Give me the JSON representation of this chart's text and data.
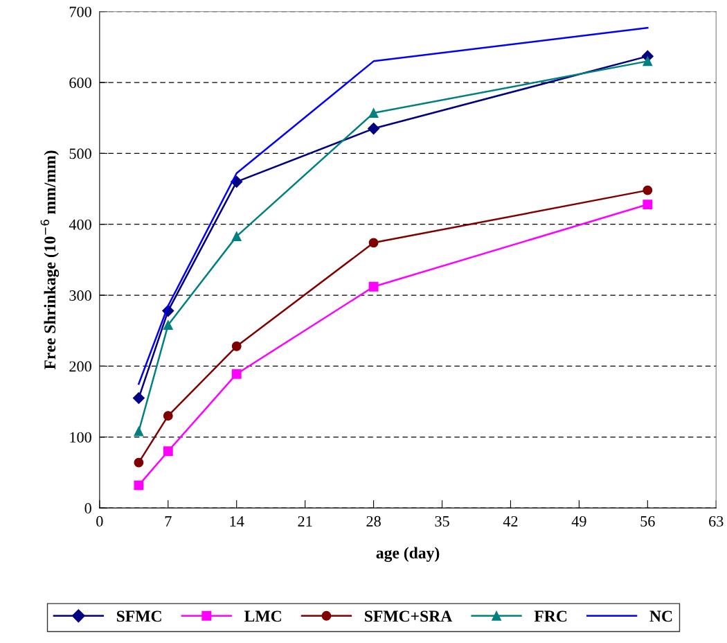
{
  "chart_data": {
    "type": "line",
    "xlabel": "age (day)",
    "ylabel": "Free Shrinkage (10$^{−6}$ mm/mm)",
    "x": [
      4,
      7,
      14,
      28,
      56
    ],
    "series": [
      {
        "name": "SFMC",
        "color": "#000080",
        "marker": "diamond",
        "values": [
          155,
          278,
          460,
          535,
          637
        ]
      },
      {
        "name": "LMC",
        "color": "#ff00ff",
        "marker": "square",
        "values": [
          32,
          80,
          189,
          312,
          428
        ]
      },
      {
        "name": "SFMC+SRA",
        "color": "#800000",
        "marker": "circle",
        "values": [
          64,
          130,
          228,
          374,
          448
        ]
      },
      {
        "name": "FRC",
        "color": "#008080",
        "marker": "triangle",
        "values": [
          108,
          258,
          383,
          557,
          630
        ]
      },
      {
        "name": "NC",
        "color": "#0000ff",
        "marker": "none",
        "values": [
          175,
          285,
          472,
          630,
          677
        ]
      }
    ],
    "xlim": [
      0,
      63
    ],
    "xticks": [
      0,
      7,
      14,
      21,
      28,
      35,
      42,
      49,
      56,
      63
    ],
    "ylim": [
      0,
      700
    ],
    "yticks": [
      0,
      100,
      200,
      300,
      400,
      500,
      600,
      700
    ],
    "grid": "y",
    "legend": "bottom",
    "line_style": "solid"
  }
}
